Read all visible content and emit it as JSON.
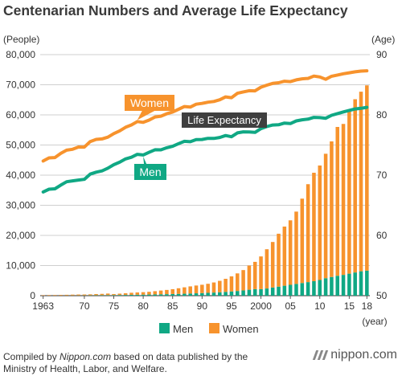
{
  "title": "Centenarian Numbers and Average Life Expectancy",
  "chart_data": {
    "type": "bar+line",
    "title": "Centenarian Numbers and Average Life Expectancy",
    "x_label_unit": "(year)",
    "left_axis": {
      "label": "(People)",
      "range": [
        0,
        80000
      ],
      "ticks": [
        "0",
        "10,000",
        "20,000",
        "30,000",
        "40,000",
        "50,000",
        "60,000",
        "70,000",
        "80,000"
      ]
    },
    "right_axis": {
      "label": "(Age)",
      "range": [
        50,
        90
      ],
      "ticks": [
        "50",
        "60",
        "70",
        "80",
        "90"
      ]
    },
    "x_tick_labels": [
      {
        "year": 1963,
        "label": "1963"
      },
      {
        "year": 1970,
        "label": "70"
      },
      {
        "year": 1975,
        "label": "75"
      },
      {
        "year": 1980,
        "label": "80"
      },
      {
        "year": 1985,
        "label": "85"
      },
      {
        "year": 1990,
        "label": "90"
      },
      {
        "year": 1995,
        "label": "95"
      },
      {
        "year": 2000,
        "label": "2000"
      },
      {
        "year": 2005,
        "label": "05"
      },
      {
        "year": 2010,
        "label": "10"
      },
      {
        "year": 2015,
        "label": "15"
      },
      {
        "year": 2018,
        "label": "18"
      }
    ],
    "grid": "horizontal",
    "legend": "bottom-center",
    "legend_entries": [
      "Men",
      "Women"
    ],
    "years": [
      1963,
      1964,
      1965,
      1966,
      1967,
      1968,
      1969,
      1970,
      1971,
      1972,
      1973,
      1974,
      1975,
      1976,
      1977,
      1978,
      1979,
      1980,
      1981,
      1982,
      1983,
      1984,
      1985,
      1986,
      1987,
      1988,
      1989,
      1990,
      1991,
      1992,
      1993,
      1994,
      1995,
      1996,
      1997,
      1998,
      1999,
      2000,
      2001,
      2002,
      2003,
      2004,
      2005,
      2006,
      2007,
      2008,
      2009,
      2010,
      2011,
      2012,
      2013,
      2014,
      2015,
      2016,
      2017,
      2018
    ],
    "bar_series": [
      {
        "name": "Men",
        "color": "#10a884",
        "values": [
          20,
          30,
          40,
          50,
          60,
          70,
          80,
          90,
          110,
          130,
          150,
          170,
          190,
          220,
          250,
          280,
          300,
          340,
          380,
          420,
          460,
          500,
          560,
          600,
          650,
          720,
          790,
          860,
          940,
          1030,
          1130,
          1260,
          1400,
          1560,
          1730,
          1970,
          2160,
          2160,
          2380,
          2710,
          3000,
          3300,
          3600,
          3900,
          4200,
          4500,
          4800,
          5200,
          5800,
          6200,
          6600,
          6900,
          7300,
          7700,
          8100,
          8300
        ]
      },
      {
        "name": "Women",
        "color": "#f7932d",
        "values": [
          130,
          160,
          170,
          200,
          230,
          270,
          300,
          300,
          330,
          400,
          450,
          530,
          350,
          450,
          550,
          680,
          770,
          820,
          900,
          1070,
          1240,
          1400,
          1590,
          1860,
          2120,
          2360,
          2580,
          2760,
          3000,
          3350,
          3790,
          4330,
          5000,
          5830,
          6760,
          8030,
          9060,
          10860,
          13030,
          15110,
          17560,
          19630,
          21400,
          24000,
          28000,
          32500,
          36000,
          38000,
          41300,
          45000,
          49400,
          50100,
          54500,
          57500,
          59600,
          61500
        ]
      }
    ],
    "line_series": [
      {
        "name": "Women",
        "label": "Women",
        "color": "#f7932d",
        "values": [
          72.34,
          72.87,
          72.92,
          73.61,
          74.15,
          74.3,
          74.67,
          74.66,
          75.58,
          75.94,
          76.02,
          76.31,
          76.89,
          77.35,
          77.95,
          78.33,
          78.89,
          78.76,
          79.13,
          79.66,
          79.78,
          80.18,
          80.48,
          80.93,
          81.39,
          81.3,
          81.77,
          81.9,
          82.11,
          82.22,
          82.51,
          82.98,
          82.85,
          83.59,
          83.82,
          84.01,
          83.99,
          84.6,
          84.93,
          85.23,
          85.33,
          85.59,
          85.52,
          85.81,
          85.99,
          86.05,
          86.44,
          86.3,
          85.9,
          86.41,
          86.61,
          86.83,
          86.99,
          87.14,
          87.26,
          87.32
        ]
      },
      {
        "name": "Men",
        "label": "Men",
        "color": "#10a884",
        "values": [
          67.21,
          67.67,
          67.74,
          68.35,
          68.91,
          69.05,
          69.18,
          69.31,
          70.17,
          70.5,
          70.7,
          71.16,
          71.73,
          72.15,
          72.69,
          72.97,
          73.46,
          73.35,
          73.79,
          74.22,
          74.2,
          74.54,
          74.78,
          75.23,
          75.61,
          75.54,
          75.91,
          75.92,
          76.11,
          76.09,
          76.25,
          76.57,
          76.38,
          77.01,
          77.19,
          77.16,
          77.1,
          77.72,
          78.07,
          78.32,
          78.36,
          78.64,
          78.56,
          79.0,
          79.19,
          79.29,
          79.59,
          79.55,
          79.44,
          79.94,
          80.21,
          80.5,
          80.75,
          80.98,
          81.09,
          81.25
        ]
      }
    ],
    "annotations": [
      "Life Expectancy"
    ]
  },
  "caption": {
    "prefix": "Compiled by ",
    "source": "Nippon.com",
    "rest": " based on data published by the",
    "line2": "Ministry of Health, Labor, and Welfare."
  },
  "brand": "nippon.com"
}
